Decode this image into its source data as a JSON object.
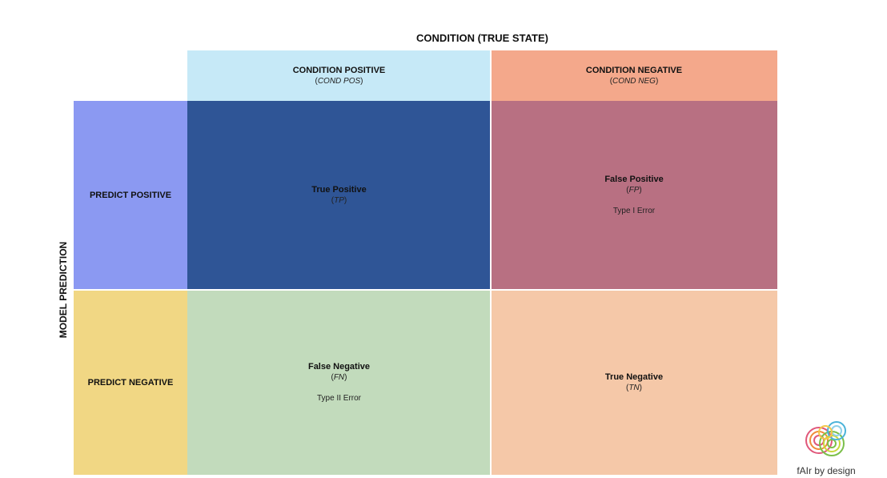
{
  "axis": {
    "top_title": "CONDITION (TRUE STATE)",
    "side_title": "MODEL PREDICTION"
  },
  "columns": {
    "positive": {
      "label": "CONDITION POSITIVE",
      "abbr_open": "(",
      "abbr": "COND POS",
      "abbr_close": ")"
    },
    "negative": {
      "label": "CONDITION NEGATIVE",
      "abbr_open": "(",
      "abbr": "COND NEG",
      "abbr_close": ")"
    }
  },
  "rows": {
    "positive": {
      "label": "PREDICT POSITIVE"
    },
    "negative": {
      "label": "PREDICT NEGATIVE"
    }
  },
  "cells": {
    "tp": {
      "title": "True Positive",
      "abbr": "TP",
      "note": ""
    },
    "fp": {
      "title": "False Positive",
      "abbr": "FP",
      "note": "Type I Error"
    },
    "fn": {
      "title": "False Negative",
      "abbr": "FN",
      "note": "Type II Error"
    },
    "tn": {
      "title": "True Negative",
      "abbr": "TN",
      "note": ""
    }
  },
  "logo": {
    "text": "fAIr by design"
  },
  "colors": {
    "cond_pos_header": "#c6e9f7",
    "cond_neg_header": "#f4a88b",
    "predict_pos": "#8b99f2",
    "predict_neg": "#f1d784",
    "true_positive": "#2f5596",
    "false_positive": "#b87082",
    "false_negative": "#c2dbbc",
    "true_negative": "#f5c8a8"
  }
}
